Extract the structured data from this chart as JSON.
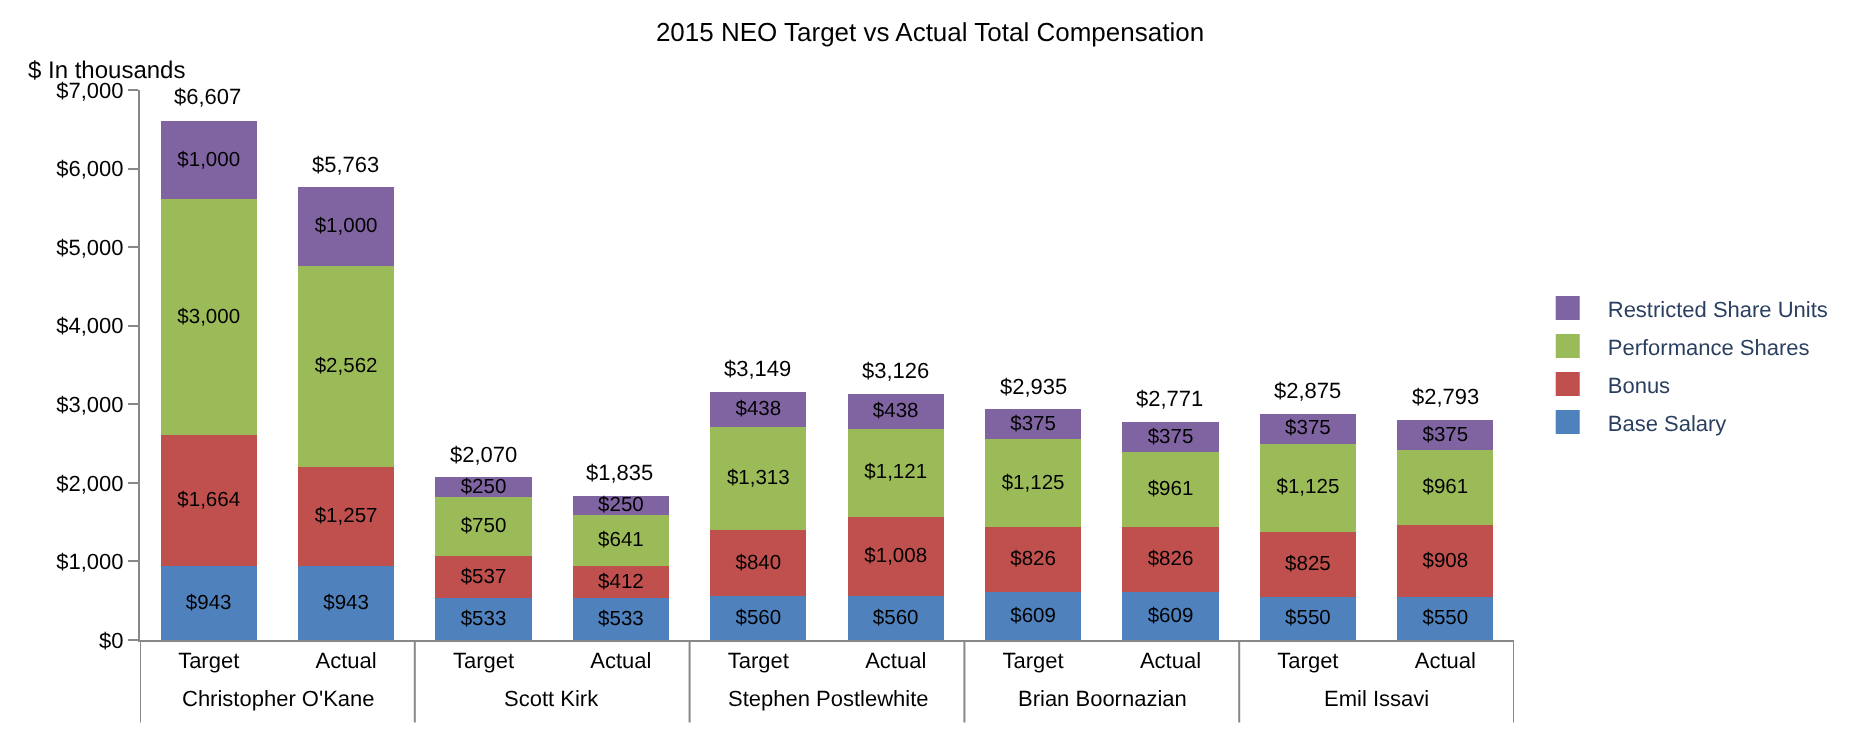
{
  "chart_data": {
    "type": "bar",
    "stacked": true,
    "title": "2015 NEO Target vs Actual Total Compensation",
    "ylabel": "$ In thousands",
    "categories": [
      "Target",
      "Actual",
      "Target",
      "Actual",
      "Target",
      "Actual",
      "Target",
      "Actual",
      "Target",
      "Actual"
    ],
    "annotations": [
      "Christopher O'Kane",
      "Scott Kirk",
      "Stephen Postlewhite",
      "Brian Boornazian",
      "Emil Issavi"
    ],
    "series": [
      {
        "name": "Base Salary",
        "color": "#4f81bd",
        "values": [
          943,
          943,
          533,
          533,
          560,
          560,
          609,
          609,
          550,
          550
        ],
        "value_labels": [
          "$943",
          "$943",
          "$533",
          "$533",
          "$560",
          "$560",
          "$609",
          "$609",
          "$550",
          "$550"
        ]
      },
      {
        "name": "Bonus",
        "color": "#c0504d",
        "values": [
          1664,
          1257,
          537,
          412,
          840,
          1008,
          826,
          826,
          825,
          908
        ],
        "value_labels": [
          "$1,664",
          "$1,257",
          "$537",
          "$412",
          "$840",
          "$1,008",
          "$826",
          "$826",
          "$825",
          "$908"
        ]
      },
      {
        "name": "Performance Shares",
        "color": "#9bbb59",
        "values": [
          3000,
          2562,
          750,
          641,
          1313,
          1121,
          1125,
          961,
          1125,
          961
        ],
        "value_labels": [
          "$3,000",
          "$2,562",
          "$750",
          "$641",
          "$1,313",
          "$1,121",
          "$1,125",
          "$961",
          "$1,125",
          "$961"
        ]
      },
      {
        "name": "Restricted Share Units",
        "color": "#8064a2",
        "values": [
          1000,
          1000,
          250,
          250,
          438,
          438,
          375,
          375,
          375,
          375
        ],
        "value_labels": [
          "$1,000",
          "$1,000",
          "$250",
          "$250",
          "$438",
          "$438",
          "$375",
          "$375",
          "$375",
          "$375"
        ]
      }
    ],
    "totals": [
      "$6,607",
      "$5,763",
      "$2,070",
      "$1,835",
      "$3,149",
      "$3,126",
      "$2,935",
      "$2,771",
      "$2,875",
      "$2,793"
    ],
    "ylim": [
      0,
      7000
    ],
    "yticks": [
      {
        "value": 0,
        "label": "$0"
      },
      {
        "value": 1000,
        "label": "$1,000"
      },
      {
        "value": 2000,
        "label": "$2,000"
      },
      {
        "value": 3000,
        "label": "$3,000"
      },
      {
        "value": 4000,
        "label": "$4,000"
      },
      {
        "value": 5000,
        "label": "$5,000"
      },
      {
        "value": 6000,
        "label": "$6,000"
      },
      {
        "value": 7000,
        "label": "$7,000"
      }
    ],
    "legend": "right"
  }
}
